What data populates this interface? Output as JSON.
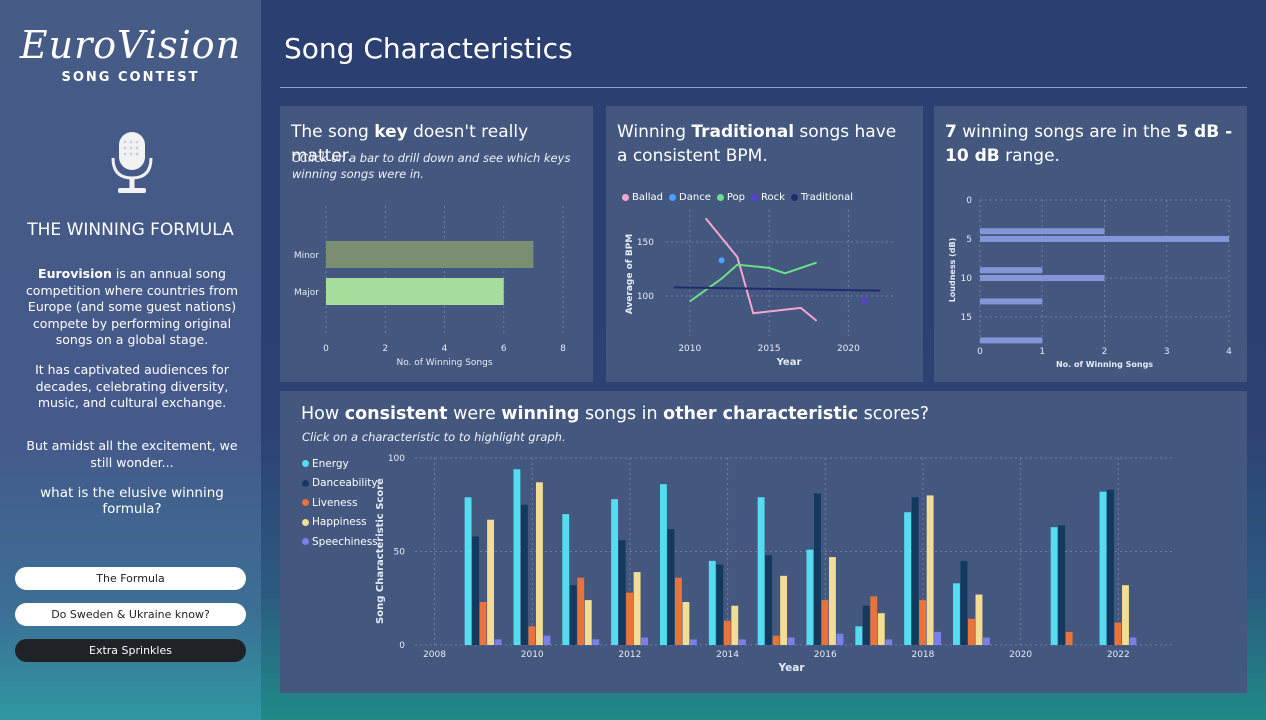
{
  "sidebar": {
    "logo_line1": "EuroVision",
    "logo_line2": "SONG CONTEST",
    "formula_title": "THE WINNING FORMULA",
    "intro_bold": "Eurovision",
    "intro_rest": " is an annual song competition where countries from Europe (and some guest nations) compete by performing original songs on a global stage.",
    "para2": "It has captivated audiences for decades, celebrating diversity, music, and cultural exchange.",
    "para3": "But amidst all the excitement, we still wonder...",
    "question": "what is the elusive winning formula?",
    "buttons": [
      "The Formula",
      "Do Sweden & Ukraine know?",
      "Extra Sprinkles"
    ]
  },
  "page_title": "Song Characteristics",
  "card_key": {
    "title_pre": "The song ",
    "title_bold": "key",
    "title_post": " doesn't really matter.",
    "subtitle": "CClick on a bar to drill down and see which keys winning songs were in."
  },
  "card_bpm": {
    "title_pre": "Winning ",
    "title_bold": "Traditional",
    "title_post": " songs have a consistent BPM."
  },
  "card_loud": {
    "title_b1": "7",
    "title_mid": " winning songs are in the ",
    "title_b2": "5 dB - 10 dB",
    "title_post": " range."
  },
  "card_chars": {
    "title_p1": "How ",
    "title_b1": "consistent",
    "title_p2": " were ",
    "title_b2": "winning",
    "title_p3": " songs in ",
    "title_b3": "other characteristic",
    "title_p4": " scores?",
    "subtitle": "Click on a characteristic to to highlight graph."
  },
  "colors": {
    "minor": "#7a8f72",
    "major": "#a6dc9c",
    "ballad": "#f5a6d0",
    "dance": "#4aa3ff",
    "pop": "#6ce089",
    "rock": "#5b3fd6",
    "traditional": "#1f2d6e",
    "loud": "#8296d8",
    "energy": "#54dcf0",
    "danceability": "#133a5e",
    "liveness": "#e8743c",
    "happiness": "#f3dc94",
    "speechiness": "#7b7fe6"
  },
  "chart_data": [
    {
      "type": "bar",
      "orientation": "horizontal",
      "categories": [
        "Minor",
        "Major"
      ],
      "values": [
        7,
        6
      ],
      "xlabel": "No. of Winning Songs",
      "xlim": [
        0,
        8
      ],
      "xticks": [
        "0",
        "2",
        "4",
        "6",
        "8"
      ]
    },
    {
      "type": "line",
      "xlabel": "Year",
      "ylabel": "Average of BPM",
      "xticks": [
        "2010",
        "2015",
        "2020"
      ],
      "yticks": [
        "100",
        "150"
      ],
      "series": [
        {
          "name": "Ballad",
          "x": [
            2011,
            2013,
            2014,
            2017,
            2018
          ],
          "y": [
            172,
            136,
            84,
            89,
            77
          ]
        },
        {
          "name": "Dance",
          "x": [
            2012
          ],
          "y": [
            133
          ]
        },
        {
          "name": "Pop",
          "x": [
            2010,
            2012,
            2013,
            2015,
            2016,
            2018
          ],
          "y": [
            95,
            116,
            129,
            126,
            121,
            131
          ]
        },
        {
          "name": "Rock",
          "x": [
            2021
          ],
          "y": [
            96
          ]
        },
        {
          "name": "Traditional",
          "x": [
            2009,
            2022
          ],
          "y": [
            108,
            105
          ]
        }
      ],
      "legend": "top"
    },
    {
      "type": "bar",
      "orientation": "horizontal",
      "xlabel": "No. of Winning Songs",
      "ylabel": "Loudness (dB)",
      "xticks": [
        "0",
        "1",
        "2",
        "3",
        "4"
      ],
      "yticks": [
        "0",
        "5",
        "10",
        "15"
      ],
      "categories": [
        4,
        5,
        9,
        10,
        13,
        18
      ],
      "values": [
        2,
        4,
        1,
        2,
        1,
        1
      ]
    },
    {
      "type": "bar",
      "xlabel": "Year",
      "ylabel": "Song Characteristic Score",
      "yticks": [
        "0",
        "50",
        "100"
      ],
      "xticks": [
        "2008",
        "2010",
        "2012",
        "2014",
        "2016",
        "2018",
        "2020",
        "2022"
      ],
      "categories": [
        2009,
        2010,
        2011,
        2012,
        2013,
        2014,
        2015,
        2016,
        2017,
        2018,
        2019,
        2021,
        2022
      ],
      "series": [
        {
          "name": "Energy",
          "values": [
            79,
            94,
            70,
            78,
            86,
            45,
            79,
            51,
            10,
            71,
            33,
            63,
            82
          ]
        },
        {
          "name": "Danceability",
          "values": [
            58,
            75,
            32,
            56,
            62,
            43,
            48,
            81,
            21,
            79,
            45,
            64,
            83
          ]
        },
        {
          "name": "Liveness",
          "values": [
            23,
            10,
            36,
            28,
            36,
            13,
            5,
            24,
            26,
            24,
            14,
            7,
            12
          ]
        },
        {
          "name": "Happiness",
          "values": [
            67,
            87,
            24,
            39,
            23,
            21,
            37,
            47,
            17,
            80,
            27,
            0,
            32
          ]
        },
        {
          "name": "Speechiness",
          "values": [
            3,
            5,
            3,
            4,
            3,
            3,
            4,
            6,
            3,
            7,
            4,
            0,
            4
          ]
        }
      ],
      "legend": "left"
    }
  ]
}
